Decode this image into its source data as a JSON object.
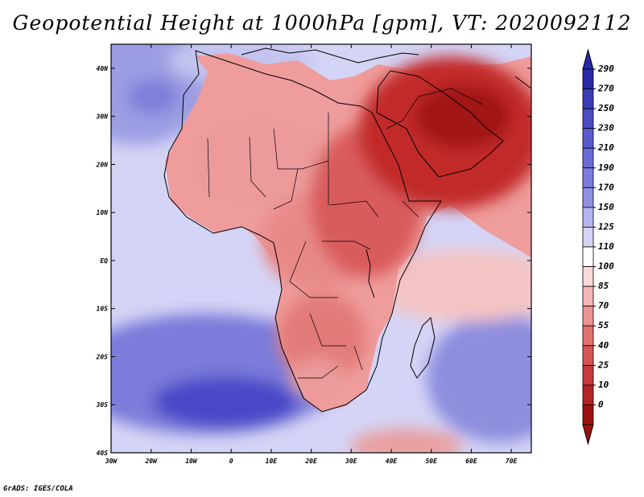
{
  "title": "Geopotential Height at 1000hPa [gpm], VT: 2020092112",
  "footer": "GrADS: IGES/COLA",
  "map": {
    "lon_range": [
      -30,
      75
    ],
    "lat_range": [
      -40,
      45
    ],
    "lon_ticks": [
      "30W",
      "20W",
      "10W",
      "0",
      "10E",
      "20E",
      "30E",
      "40E",
      "50E",
      "60E",
      "70E"
    ],
    "lat_ticks": [
      "40N",
      "30N",
      "20N",
      "10N",
      "EQ",
      "10S",
      "20S",
      "30S",
      "40S"
    ],
    "regions": {
      "ocean_background": "#d4d4f6",
      "north_atlantic_low": "#9d9de3",
      "azores_core": "#7f7fdc",
      "sahara": "#ef9c9c",
      "central_africa": "#e88989",
      "east_africa": "#d95b5b",
      "arabia_middle_east": "#c22c2c",
      "persian_gulf_core": "#a21616",
      "southern_africa": "#e37a7a",
      "indian_ocean_pink": "#f4c4c4",
      "south_atlantic_high": "#7c7cda",
      "south_atlantic_core": "#4a4ac8",
      "south_indian_high": "#8e8edf",
      "southern_low": "#e8a0a0"
    },
    "coastline_color": "#000000"
  },
  "colorbar": {
    "labels": [
      "290",
      "270",
      "250",
      "230",
      "210",
      "190",
      "170",
      "150",
      "125",
      "110",
      "100",
      "85",
      "70",
      "55",
      "40",
      "25",
      "10",
      "0"
    ],
    "colors": [
      "#2828a8",
      "#3c3cb4",
      "#4b4bc4",
      "#5a5acf",
      "#6b6bd6",
      "#7c7cdc",
      "#9090e2",
      "#b4b4ee",
      "#d4d4f6",
      "#ffffff",
      "#fbd9d9",
      "#f4b7b7",
      "#ec9494",
      "#e27272",
      "#d65454",
      "#c73a3a",
      "#b42424",
      "#9c1212"
    ]
  }
}
